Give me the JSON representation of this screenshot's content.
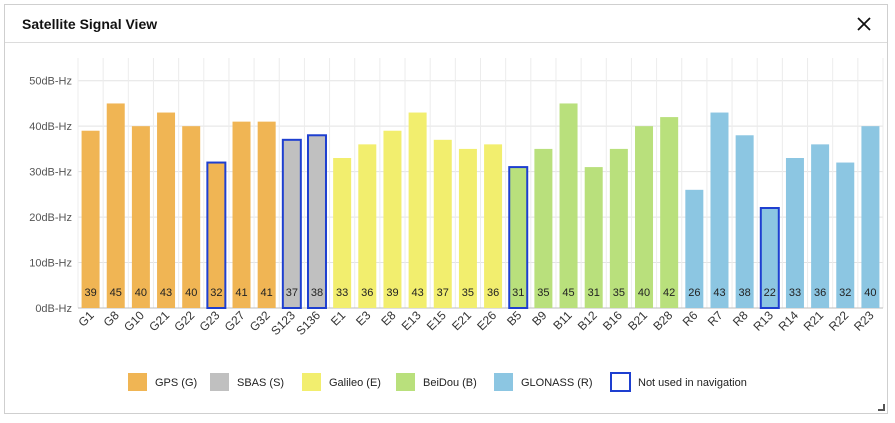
{
  "window": {
    "title": "Satellite Signal View"
  },
  "chart_data": {
    "type": "bar",
    "ylim": [
      0,
      55
    ],
    "yticks": [
      {
        "value": 0,
        "label": "0dB-Hz"
      },
      {
        "value": 10,
        "label": "10dB-Hz"
      },
      {
        "value": 20,
        "label": "20dB-Hz"
      },
      {
        "value": 30,
        "label": "30dB-Hz"
      },
      {
        "value": 40,
        "label": "40dB-Hz"
      },
      {
        "value": 50,
        "label": "50dB-Hz"
      }
    ],
    "grid": true,
    "categories": [
      "G1",
      "G8",
      "G10",
      "G21",
      "G22",
      "G23",
      "G27",
      "G32",
      "S123",
      "S136",
      "E1",
      "E3",
      "E8",
      "E13",
      "E15",
      "E21",
      "E26",
      "B5",
      "B9",
      "B11",
      "B12",
      "B16",
      "B21",
      "B28",
      "R6",
      "R7",
      "R8",
      "R13",
      "R14",
      "R21",
      "R22",
      "R23"
    ],
    "values": [
      39,
      45,
      40,
      43,
      40,
      32,
      41,
      41,
      37,
      38,
      33,
      36,
      39,
      43,
      37,
      35,
      36,
      31,
      35,
      45,
      31,
      35,
      40,
      42,
      26,
      43,
      38,
      22,
      33,
      36,
      32,
      40
    ],
    "constellation": [
      "GPS",
      "GPS",
      "GPS",
      "GPS",
      "GPS",
      "GPS",
      "GPS",
      "GPS",
      "SBAS",
      "SBAS",
      "Galileo",
      "Galileo",
      "Galileo",
      "Galileo",
      "Galileo",
      "Galileo",
      "Galileo",
      "BeiDou",
      "BeiDou",
      "BeiDou",
      "BeiDou",
      "BeiDou",
      "BeiDou",
      "BeiDou",
      "GLONASS",
      "GLONASS",
      "GLONASS",
      "GLONASS",
      "GLONASS",
      "GLONASS",
      "GLONASS",
      "GLONASS"
    ],
    "not_used": [
      "G23",
      "S123",
      "S136",
      "B5",
      "R13"
    ],
    "legend": [
      {
        "key": "GPS",
        "label": "GPS (G)",
        "color": "#f0b554"
      },
      {
        "key": "SBAS",
        "label": "SBAS (S)",
        "color": "#c0c0c0"
      },
      {
        "key": "Galileo",
        "label": "Galileo (E)",
        "color": "#f2ee6e"
      },
      {
        "key": "BeiDou",
        "label": "BeiDou (B)",
        "color": "#b9e07c"
      },
      {
        "key": "GLONASS",
        "label": "GLONASS (R)",
        "color": "#8cc6e2"
      },
      {
        "key": "not_used",
        "label": "Not used in navigation",
        "color": "#1e3fd0"
      }
    ]
  }
}
